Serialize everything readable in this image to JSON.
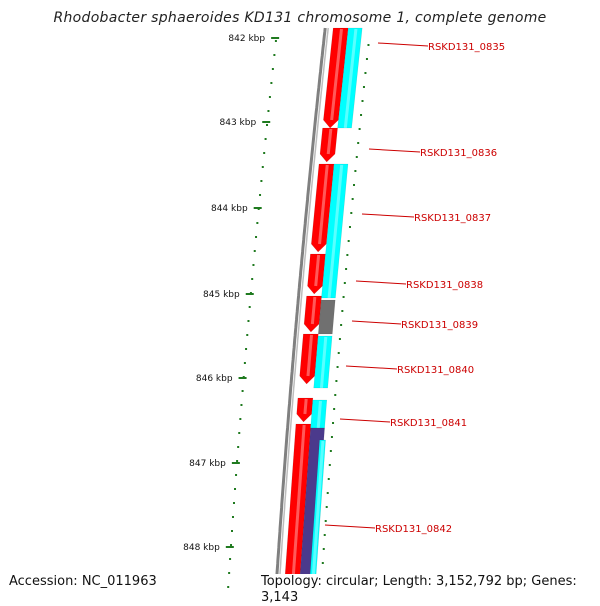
{
  "title": "Rhodobacter sphaeroides KD131 chromosome 1, complete genome",
  "footer": {
    "accession": "Accession: NC_011963",
    "summary": "Topology: circular; Length: 3,152,792 bp; Genes: 3,143"
  },
  "scale": {
    "ticks": [
      "842 kbp",
      "843 kbp",
      "844 kbp",
      "845 kbp",
      "846 kbp",
      "847 kbp",
      "848 kbp"
    ]
  },
  "genes": [
    "RSKD131_0835",
    "RSKD131_0836",
    "RSKD131_0837",
    "RSKD131_0838",
    "RSKD131_0839",
    "RSKD131_0840",
    "RSKD131_0841",
    "RSKD131_0842"
  ],
  "colors": {
    "backbone": "#808080",
    "cds_forward": "#ff0000",
    "cds_highlight": "#00ffff",
    "cds_other": "#707070",
    "cds_dark": "#4b3a8c",
    "tick": "#1f7a1f",
    "label": "#cc0000"
  }
}
